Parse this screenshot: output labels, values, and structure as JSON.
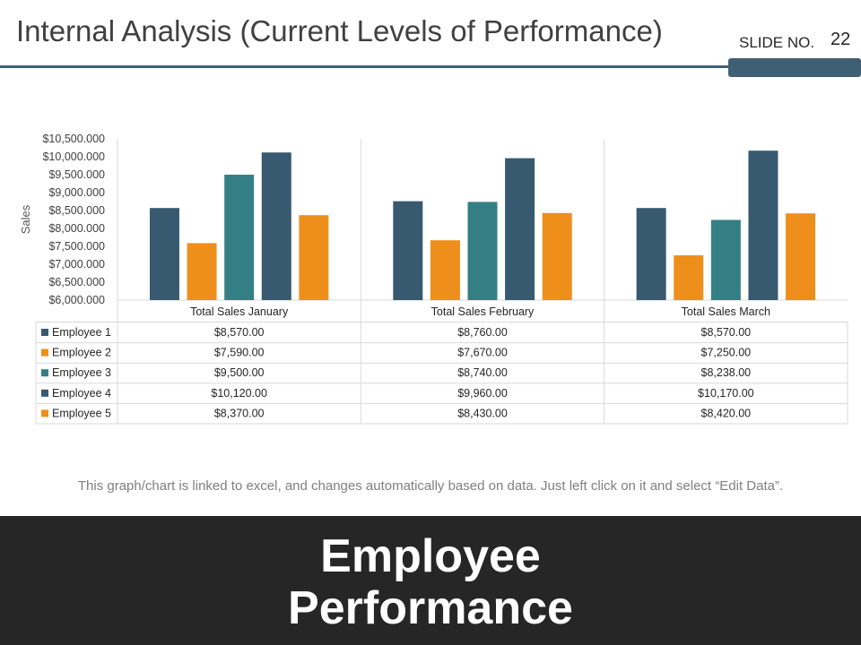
{
  "slide": {
    "title": "Internal Analysis (Current Levels of Performance)",
    "slide_no_label": "SLIDE NO.",
    "slide_no_value": "22",
    "footnote": "This graph/chart is linked to excel, and changes automatically based on data. Just left click on it and select “Edit Data”.",
    "banner_line1": "Employee",
    "banner_line2": "Performance"
  },
  "colors": {
    "accent": "#3f5f75",
    "banner_bg": "#262626",
    "grid": "#d9d9d9"
  },
  "chart_data": {
    "type": "bar",
    "title": "",
    "xlabel": "",
    "ylabel": "Sales",
    "ylim": [
      6000,
      10500
    ],
    "yticks": [
      6000,
      6500,
      7000,
      7500,
      8000,
      8500,
      9000,
      9500,
      10000,
      10500
    ],
    "ytick_labels": [
      "$6,000.000",
      "$6,500.000",
      "$7,000.000",
      "$7,500.000",
      "$8,000.000",
      "$8,500.000",
      "$9,000.000",
      "$9,500.000",
      "$10,000.000",
      "$10,500.000"
    ],
    "categories": [
      "Total Sales January",
      "Total Sales February",
      "Total Sales March"
    ],
    "series": [
      {
        "name": "Employee 1",
        "color": "#375a70",
        "values": [
          8570,
          8760,
          8570
        ],
        "labels": [
          "$8,570.00",
          "$8,760.00",
          "$8,570.00"
        ]
      },
      {
        "name": "Employee 2",
        "color": "#ee8f1b",
        "values": [
          7590,
          7670,
          7250
        ],
        "labels": [
          "$7,590.00",
          "$7,670.00",
          "$7,250.00"
        ]
      },
      {
        "name": "Employee 3",
        "color": "#347f84",
        "values": [
          9500,
          8740,
          8238
        ],
        "labels": [
          "$9,500.00",
          "$8,740.00",
          "$8,238.00"
        ]
      },
      {
        "name": "Employee 4",
        "color": "#375a70",
        "values": [
          10120,
          9960,
          10170
        ],
        "labels": [
          "$10,120.00",
          "$9,960.00",
          "$10,170.00"
        ]
      },
      {
        "name": "Employee 5",
        "color": "#ee8f1b",
        "values": [
          8370,
          8430,
          8420
        ],
        "labels": [
          "$8,370.00",
          "$8,430.00",
          "$8,420.00"
        ]
      }
    ],
    "data_table": true,
    "legend": "data-table-left"
  }
}
